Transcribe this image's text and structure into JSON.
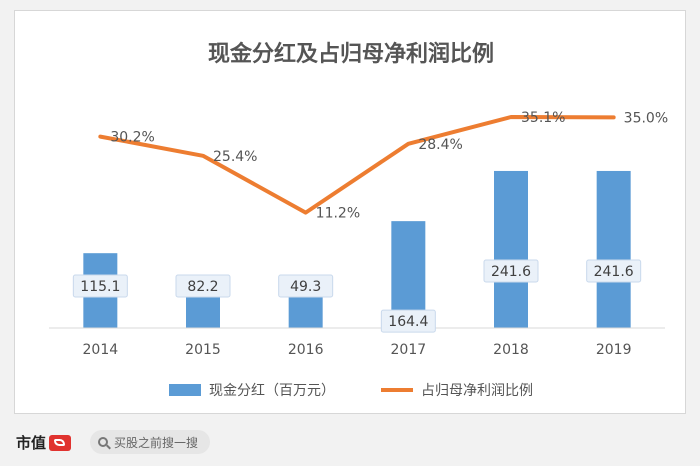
{
  "chart_data": {
    "type": "bar+line",
    "title": "现金分红及占归母净利润比例",
    "categories": [
      "2014",
      "2015",
      "2016",
      "2017",
      "2018",
      "2019"
    ],
    "series": [
      {
        "name": "现金分红（百万元）",
        "type": "bar",
        "values": [
          115.1,
          82.2,
          49.3,
          164.4,
          241.6,
          241.6
        ],
        "labels": [
          "115.1",
          "82.2",
          "49.3",
          "164.4",
          "241.6",
          "241.6"
        ],
        "color": "#5b9bd5"
      },
      {
        "name": "占归母净利润比例",
        "type": "line",
        "values": [
          30.2,
          25.4,
          11.2,
          28.4,
          35.1,
          35.0
        ],
        "labels": [
          "30.2%",
          "25.4%",
          "11.2%",
          "28.4%",
          "35.1%",
          "35.0%"
        ],
        "color": "#ed7d31"
      }
    ],
    "grid": false,
    "legend_position": "bottom"
  },
  "footer": {
    "brand": "市值",
    "search_placeholder": "买股之前搜一搜"
  }
}
